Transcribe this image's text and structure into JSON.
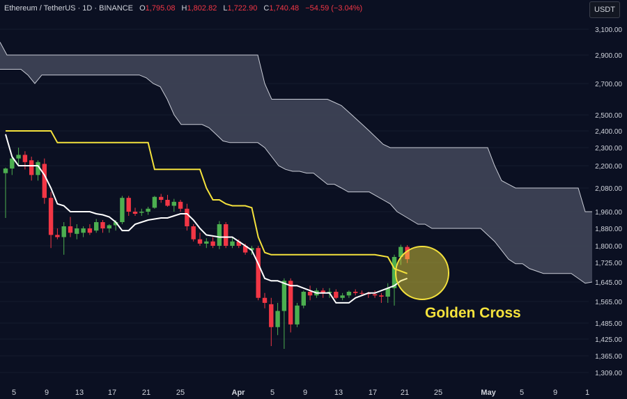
{
  "header": {
    "symbol": "Ethereum / TetherUS · 1D · BINANCE",
    "open_label": "O",
    "open": "1,795.08",
    "high_label": "H",
    "high": "1,802.82",
    "low_label": "L",
    "low": "1,722.90",
    "close_label": "C",
    "close": "1,740.48",
    "change": "−54.59 (−3.04%)"
  },
  "currency_button": "USDT",
  "annotation": "Golden Cross",
  "colors": {
    "background": "#0b1022",
    "up": "#4caf50",
    "down": "#f23645",
    "tenkan": "#ffffff",
    "kijun": "#f5e23c",
    "cloud": "#3d4255",
    "highlight": "#f5e23c"
  },
  "chart_data": {
    "type": "candlestick",
    "interval": "1D",
    "y_axis_ticks": [
      "3,100.00",
      "2,900.00",
      "2,700.00",
      "2,500.00",
      "2,400.00",
      "2,300.00",
      "2,200.00",
      "2,080.00",
      "1,960.00",
      "1,880.00",
      "1,800.00",
      "1,725.00",
      "1,645.00",
      "1,565.00",
      "1,485.00",
      "1,425.00",
      "1,365.00",
      "1,309.00"
    ],
    "x_axis_ticks": [
      "5",
      "9",
      "13",
      "17",
      "21",
      "25",
      "Apr",
      "5",
      "9",
      "13",
      "17",
      "21",
      "25",
      "May",
      "5",
      "9",
      "1"
    ],
    "candles": [
      {
        "o": 2160,
        "h": 2190,
        "l": 1930,
        "c": 2185
      },
      {
        "o": 2185,
        "h": 2260,
        "l": 2150,
        "c": 2240
      },
      {
        "o": 2240,
        "h": 2300,
        "l": 2200,
        "c": 2260
      },
      {
        "o": 2260,
        "h": 2280,
        "l": 2180,
        "c": 2220
      },
      {
        "o": 2230,
        "h": 2250,
        "l": 2120,
        "c": 2150
      },
      {
        "o": 2150,
        "h": 2230,
        "l": 2120,
        "c": 2220
      },
      {
        "o": 2210,
        "h": 2240,
        "l": 2000,
        "c": 2030
      },
      {
        "o": 2030,
        "h": 2060,
        "l": 1790,
        "c": 1850
      },
      {
        "o": 1850,
        "h": 1880,
        "l": 1830,
        "c": 1840
      },
      {
        "o": 1840,
        "h": 1910,
        "l": 1760,
        "c": 1890
      },
      {
        "o": 1890,
        "h": 1935,
        "l": 1840,
        "c": 1860
      },
      {
        "o": 1855,
        "h": 1900,
        "l": 1830,
        "c": 1880
      },
      {
        "o": 1860,
        "h": 1890,
        "l": 1840,
        "c": 1880
      },
      {
        "o": 1880,
        "h": 1900,
        "l": 1850,
        "c": 1860
      },
      {
        "o": 1870,
        "h": 1925,
        "l": 1860,
        "c": 1910
      },
      {
        "o": 1910,
        "h": 1920,
        "l": 1860,
        "c": 1880
      },
      {
        "o": 1880,
        "h": 1900,
        "l": 1860,
        "c": 1895
      },
      {
        "o": 1895,
        "h": 1920,
        "l": 1870,
        "c": 1910
      },
      {
        "o": 1910,
        "h": 2040,
        "l": 1900,
        "c": 2030
      },
      {
        "o": 2030,
        "h": 2040,
        "l": 1940,
        "c": 1960
      },
      {
        "o": 1960,
        "h": 1980,
        "l": 1940,
        "c": 1950
      },
      {
        "o": 1955,
        "h": 1975,
        "l": 1940,
        "c": 1960
      },
      {
        "o": 1960,
        "h": 1985,
        "l": 1945,
        "c": 1975
      },
      {
        "o": 1980,
        "h": 2040,
        "l": 1975,
        "c": 2035
      },
      {
        "o": 2035,
        "h": 2050,
        "l": 2005,
        "c": 2020
      },
      {
        "o": 2020,
        "h": 2045,
        "l": 1985,
        "c": 1990
      },
      {
        "o": 1990,
        "h": 2025,
        "l": 1960,
        "c": 2010
      },
      {
        "o": 2010,
        "h": 2020,
        "l": 1960,
        "c": 1975
      },
      {
        "o": 1975,
        "h": 2000,
        "l": 1870,
        "c": 1890
      },
      {
        "o": 1890,
        "h": 1900,
        "l": 1820,
        "c": 1830
      },
      {
        "o": 1830,
        "h": 1860,
        "l": 1800,
        "c": 1810
      },
      {
        "o": 1810,
        "h": 1835,
        "l": 1790,
        "c": 1820
      },
      {
        "o": 1820,
        "h": 1840,
        "l": 1790,
        "c": 1800
      },
      {
        "o": 1800,
        "h": 1915,
        "l": 1785,
        "c": 1900
      },
      {
        "o": 1900,
        "h": 1910,
        "l": 1790,
        "c": 1800
      },
      {
        "o": 1800,
        "h": 1840,
        "l": 1790,
        "c": 1820
      },
      {
        "o": 1820,
        "h": 1830,
        "l": 1790,
        "c": 1800
      },
      {
        "o": 1800,
        "h": 1810,
        "l": 1760,
        "c": 1770
      },
      {
        "o": 1780,
        "h": 1800,
        "l": 1760,
        "c": 1790
      },
      {
        "o": 1790,
        "h": 1800,
        "l": 1570,
        "c": 1580
      },
      {
        "o": 1580,
        "h": 1600,
        "l": 1540,
        "c": 1560
      },
      {
        "o": 1555,
        "h": 1580,
        "l": 1400,
        "c": 1470
      },
      {
        "o": 1470,
        "h": 1560,
        "l": 1440,
        "c": 1530
      },
      {
        "o": 1530,
        "h": 1660,
        "l": 1390,
        "c": 1650
      },
      {
        "o": 1650,
        "h": 1660,
        "l": 1450,
        "c": 1480
      },
      {
        "o": 1480,
        "h": 1560,
        "l": 1470,
        "c": 1550
      },
      {
        "o": 1550,
        "h": 1610,
        "l": 1540,
        "c": 1605
      },
      {
        "o": 1605,
        "h": 1630,
        "l": 1570,
        "c": 1590
      },
      {
        "o": 1590,
        "h": 1620,
        "l": 1580,
        "c": 1610
      },
      {
        "o": 1610,
        "h": 1620,
        "l": 1580,
        "c": 1600
      },
      {
        "o": 1600,
        "h": 1620,
        "l": 1580,
        "c": 1605
      },
      {
        "o": 1605,
        "h": 1615,
        "l": 1575,
        "c": 1580
      },
      {
        "o": 1580,
        "h": 1600,
        "l": 1570,
        "c": 1590
      },
      {
        "o": 1590,
        "h": 1610,
        "l": 1580,
        "c": 1605
      },
      {
        "o": 1605,
        "h": 1615,
        "l": 1590,
        "c": 1600
      },
      {
        "o": 1600,
        "h": 1610,
        "l": 1590,
        "c": 1598
      },
      {
        "o": 1598,
        "h": 1605,
        "l": 1580,
        "c": 1595
      },
      {
        "o": 1595,
        "h": 1610,
        "l": 1580,
        "c": 1590
      },
      {
        "o": 1590,
        "h": 1600,
        "l": 1560,
        "c": 1585
      },
      {
        "o": 1585,
        "h": 1640,
        "l": 1560,
        "c": 1620
      },
      {
        "o": 1620,
        "h": 1760,
        "l": 1550,
        "c": 1750
      },
      {
        "o": 1750,
        "h": 1805,
        "l": 1715,
        "c": 1795
      },
      {
        "o": 1795,
        "h": 1803,
        "l": 1723,
        "c": 1740
      }
    ],
    "tenkan_sen": [
      2380,
      2250,
      2200,
      2200,
      2200,
      2200,
      2150,
      2080,
      2000,
      1990,
      1960,
      1960,
      1960,
      1960,
      1950,
      1945,
      1935,
      1910,
      1870,
      1870,
      1900,
      1910,
      1920,
      1925,
      1930,
      1930,
      1940,
      1950,
      1950,
      1920,
      1880,
      1850,
      1845,
      1840,
      1840,
      1840,
      1820,
      1800,
      1780,
      1720,
      1660,
      1650,
      1650,
      1640,
      1630,
      1630,
      1620,
      1610,
      1600,
      1600,
      1600,
      1560,
      1560,
      1560,
      1580,
      1590,
      1600,
      1600,
      1610,
      1620,
      1630,
      1650,
      1660
    ],
    "kijun_sen": [
      2400,
      2400,
      2400,
      2400,
      2400,
      2400,
      2400,
      2400,
      2330,
      2330,
      2330,
      2330,
      2330,
      2330,
      2330,
      2330,
      2330,
      2330,
      2330,
      2330,
      2330,
      2330,
      2330,
      2180,
      2180,
      2180,
      2180,
      2180,
      2180,
      2180,
      2180,
      2080,
      2020,
      2020,
      2000,
      1990,
      1990,
      1990,
      1980,
      1840,
      1770,
      1760,
      1760,
      1760,
      1760,
      1760,
      1760,
      1760,
      1760,
      1760,
      1760,
      1760,
      1760,
      1760,
      1760,
      1760,
      1760,
      1760,
      1755,
      1750,
      1700,
      1690,
      1680
    ],
    "cloud_top": [
      3000,
      2900,
      2900,
      2900,
      2900,
      2900,
      2900,
      2900,
      2900,
      2900,
      2900,
      2900,
      2900,
      2900,
      2900,
      2900,
      2900,
      2900,
      2900,
      2900,
      2900,
      2900,
      2900,
      2900,
      2900,
      2900,
      2900,
      2900,
      2900,
      2900,
      2900,
      2900,
      2900,
      2900,
      2900,
      2900,
      2900,
      2900,
      2700,
      2600,
      2600,
      2600,
      2600,
      2600,
      2600,
      2600,
      2600,
      2600,
      2580,
      2560,
      2520,
      2480,
      2440,
      2400,
      2360,
      2320,
      2300,
      2300,
      2300,
      2300,
      2300,
      2300,
      2300,
      2300,
      2300,
      2300,
      2300,
      2300,
      2300,
      2300,
      2300,
      2200,
      2120,
      2100,
      2080,
      2080,
      2080,
      2080,
      2080,
      2080,
      2080,
      2080,
      2080,
      2080,
      1960,
      1960
    ],
    "cloud_bottom": [
      2800,
      2800,
      2800,
      2800,
      2760,
      2700,
      2760,
      2760,
      2760,
      2760,
      2760,
      2760,
      2760,
      2760,
      2760,
      2760,
      2760,
      2760,
      2760,
      2760,
      2760,
      2740,
      2700,
      2680,
      2600,
      2500,
      2440,
      2440,
      2440,
      2440,
      2420,
      2380,
      2340,
      2330,
      2330,
      2330,
      2330,
      2330,
      2300,
      2250,
      2200,
      2180,
      2170,
      2170,
      2160,
      2160,
      2130,
      2100,
      2100,
      2080,
      2060,
      2060,
      2060,
      2060,
      2040,
      2020,
      2000,
      1960,
      1940,
      1920,
      1900,
      1900,
      1880,
      1880,
      1880,
      1880,
      1880,
      1880,
      1880,
      1880,
      1850,
      1820,
      1780,
      1740,
      1720,
      1720,
      1700,
      1690,
      1680,
      1680,
      1680,
      1680,
      1680,
      1660,
      1640,
      1645
    ]
  }
}
